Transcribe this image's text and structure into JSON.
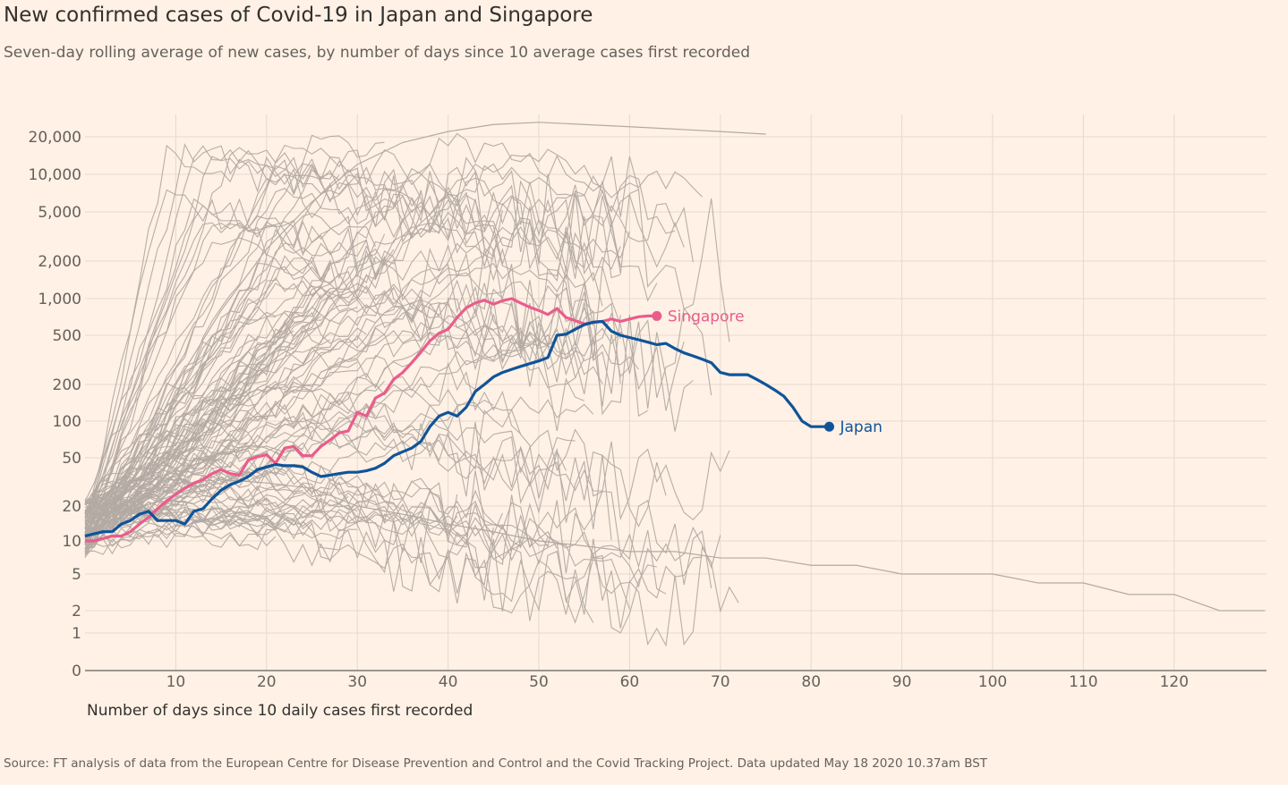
{
  "header": {
    "title": "New confirmed cases of Covid-19 in Japan and Singapore",
    "subtitle": "Seven-day rolling average of new cases, by number of days since 10 average cases first recorded"
  },
  "footer": {
    "source": "Source: FT analysis of data from the European Centre for Disease Prevention and Control and the Covid Tracking Project. Data updated May 18 2020 10.37am BST"
  },
  "colors": {
    "background": "#fff1e5",
    "grid": "#e6d9ce",
    "other_countries": "#b3aaa3",
    "singapore": "#e95d8c",
    "japan": "#0f5499",
    "axis": "#66605c"
  },
  "chart_data": {
    "type": "line",
    "title": "New confirmed cases of Covid-19 in Japan and Singapore",
    "xlabel": "Number of days since 10 daily cases first recorded",
    "ylabel": "",
    "y_scale": "log (symlog, includes 0)",
    "xlim": [
      0,
      130
    ],
    "x_ticks": [
      10,
      20,
      30,
      40,
      50,
      60,
      70,
      80,
      90,
      100,
      110,
      120
    ],
    "y_ticks": [
      {
        "value": 0,
        "label": "0"
      },
      {
        "value": 1,
        "label": "1"
      },
      {
        "value": 2,
        "label": "2"
      },
      {
        "value": 5,
        "label": "5"
      },
      {
        "value": 10,
        "label": "10"
      },
      {
        "value": 20,
        "label": "20"
      },
      {
        "value": 50,
        "label": "50"
      },
      {
        "value": 100,
        "label": "100"
      },
      {
        "value": 200,
        "label": "200"
      },
      {
        "value": 500,
        "label": "500"
      },
      {
        "value": 1000,
        "label": "1,000"
      },
      {
        "value": 2000,
        "label": "2,000"
      },
      {
        "value": 5000,
        "label": "5,000"
      },
      {
        "value": 10000,
        "label": "10,000"
      },
      {
        "value": 20000,
        "label": "20,000"
      }
    ],
    "grid": true,
    "highlight": [
      {
        "name": "Singapore",
        "x": [
          0,
          1,
          2,
          3,
          4,
          5,
          6,
          7,
          8,
          9,
          10,
          11,
          12,
          13,
          14,
          15,
          16,
          17,
          18,
          19,
          20,
          21,
          22,
          23,
          24,
          25,
          26,
          27,
          28,
          29,
          30,
          31,
          32,
          33,
          34,
          35,
          36,
          37,
          38,
          39,
          40,
          41,
          42,
          43,
          44,
          45,
          46,
          47,
          48,
          49,
          50,
          51,
          52,
          53,
          54,
          55,
          56,
          57,
          58,
          59,
          60,
          61,
          62,
          63
        ],
        "y": [
          10,
          10,
          10.5,
          11,
          11,
          12,
          14,
          16,
          19,
          22,
          25,
          28,
          31,
          33,
          37,
          40,
          37,
          36,
          48,
          51,
          53,
          45,
          60,
          62,
          52,
          52,
          62,
          70,
          80,
          83,
          118,
          110,
          155,
          170,
          220,
          250,
          300,
          365,
          450,
          520,
          560,
          700,
          840,
          920,
          970,
          900,
          960,
          1000,
          920,
          850,
          800,
          740,
          830,
          700,
          660,
          620,
          640,
          650,
          680,
          650,
          680,
          710,
          720,
          720
        ]
      },
      {
        "name": "Japan",
        "x": [
          0,
          1,
          2,
          3,
          4,
          5,
          6,
          7,
          8,
          9,
          10,
          11,
          12,
          13,
          14,
          15,
          16,
          17,
          18,
          19,
          20,
          21,
          22,
          23,
          24,
          25,
          26,
          27,
          28,
          29,
          30,
          31,
          32,
          33,
          34,
          35,
          36,
          37,
          38,
          39,
          40,
          41,
          42,
          43,
          44,
          45,
          46,
          47,
          48,
          49,
          50,
          51,
          52,
          53,
          54,
          55,
          56,
          57,
          58,
          59,
          60,
          61,
          62,
          63,
          64,
          65,
          66,
          67,
          68,
          69,
          70,
          71,
          72,
          73,
          74,
          75,
          76,
          77,
          78,
          79,
          80,
          81,
          82
        ],
        "y": [
          11,
          11.5,
          12,
          12,
          14,
          15,
          17,
          18,
          15,
          15,
          15,
          14,
          18,
          19,
          23,
          27,
          30,
          32,
          35,
          40,
          42,
          44,
          43,
          43,
          42,
          38,
          35,
          36,
          37,
          38,
          38,
          39,
          41,
          45,
          52,
          56,
          60,
          68,
          90,
          110,
          118,
          110,
          130,
          175,
          200,
          230,
          250,
          265,
          280,
          295,
          310,
          330,
          500,
          510,
          560,
          610,
          640,
          650,
          540,
          500,
          480,
          460,
          440,
          420,
          430,
          390,
          360,
          340,
          320,
          300,
          250,
          240,
          240,
          240,
          220,
          200,
          180,
          160,
          130,
          100,
          90,
          90,
          90
        ]
      }
    ],
    "other_countries": [
      {
        "x": [
          0,
          5,
          10,
          15,
          20,
          25,
          30,
          35,
          40,
          45,
          50,
          55,
          60,
          65,
          70,
          75,
          80,
          85,
          90,
          95,
          100,
          105,
          110,
          115,
          120,
          125,
          130
        ],
        "y": [
          14,
          18,
          25,
          33,
          31,
          28,
          20,
          17,
          14,
          12,
          10,
          9,
          8,
          8,
          7,
          7,
          6,
          6,
          5,
          5,
          5,
          4,
          4,
          3,
          3,
          2,
          2
        ]
      },
      {
        "x": [
          0,
          5,
          10,
          15,
          20,
          25,
          30,
          35,
          40,
          45,
          50,
          55,
          60,
          65,
          70,
          75
        ],
        "y": [
          11,
          30,
          200,
          800,
          2500,
          6000,
          12000,
          18000,
          22000,
          25000,
          26000,
          25000,
          24000,
          23000,
          22000,
          21000
        ]
      }
    ]
  }
}
